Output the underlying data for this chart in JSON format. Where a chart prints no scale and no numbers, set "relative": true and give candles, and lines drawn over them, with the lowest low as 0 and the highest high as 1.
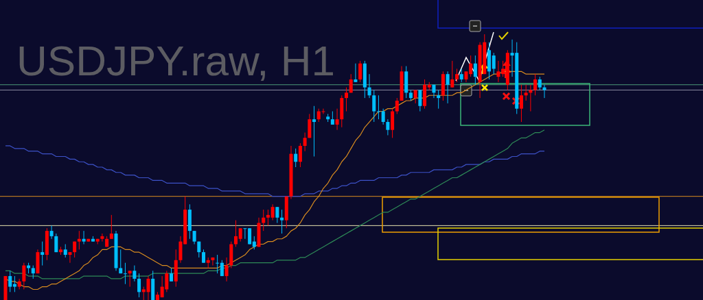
{
  "chart_data": {
    "type": "candlestick",
    "title": "USDJPY.raw, H1",
    "relative": true,
    "categories": [
      null,
      null,
      null,
      null,
      null,
      null,
      null,
      null,
      null,
      null,
      null,
      null,
      null,
      null,
      null,
      null,
      null,
      null,
      null,
      null,
      null,
      null,
      null,
      null,
      null,
      null,
      null,
      null,
      null,
      null,
      null,
      null,
      null,
      null,
      null,
      null,
      null,
      null,
      null,
      null,
      null,
      null,
      null,
      null,
      null,
      null,
      null,
      null,
      null,
      null,
      null,
      null,
      null,
      null,
      null,
      null,
      null,
      null,
      null,
      null,
      null,
      null,
      null,
      null,
      null,
      null,
      null,
      null,
      null,
      null,
      null,
      null,
      null,
      null,
      null,
      null,
      null,
      null,
      null,
      null,
      null,
      null,
      null,
      null,
      null,
      null,
      null,
      null,
      null,
      null,
      null,
      null,
      null,
      null,
      null,
      null,
      null,
      null,
      null,
      null,
      null,
      null,
      null,
      null,
      null,
      null,
      null,
      null,
      null,
      null,
      null,
      null,
      null,
      null,
      null,
      null,
      null,
      null
    ],
    "ohlc": [
      [
        0,
        0.09,
        0,
        0.09
      ],
      [
        0.09,
        0.11,
        0.03,
        0.05
      ],
      [
        0.06,
        0.09,
        0.03,
        0.05
      ],
      [
        0.05,
        0.08,
        0.04,
        0.07
      ],
      [
        0.07,
        0.14,
        0.04,
        0.13
      ],
      [
        0.13,
        0.14,
        0.1,
        0.12
      ],
      [
        0.12,
        0.13,
        0.08,
        0.1
      ],
      [
        0.1,
        0.19,
        0.1,
        0.18
      ],
      [
        0.18,
        0.22,
        0.13,
        0.17
      ],
      [
        0.17,
        0.27,
        0.15,
        0.26
      ],
      [
        0.26,
        0.28,
        0.23,
        0.24
      ],
      [
        0.24,
        0.25,
        0.18,
        0.18
      ],
      [
        0.18,
        0.2,
        0.17,
        0.19
      ],
      [
        0.19,
        0.21,
        0.16,
        0.17
      ],
      [
        0.17,
        0.18,
        0.14,
        0.18
      ],
      [
        0.18,
        0.22,
        0.16,
        0.22
      ],
      [
        0.22,
        0.26,
        0.19,
        0.23
      ],
      [
        0.23,
        0.26,
        0.21,
        0.22
      ],
      [
        0.22,
        0.23,
        0.22,
        0.23
      ],
      [
        0.23,
        0.24,
        0.22,
        0.22
      ],
      [
        0.22,
        0.23,
        0.21,
        0.23
      ],
      [
        0.23,
        0.25,
        0.22,
        0.24
      ],
      [
        0.2,
        0.24,
        0.2,
        0.23
      ],
      [
        0.23,
        0.32,
        0.23,
        0.25
      ],
      [
        0.25,
        0.26,
        0.11,
        0.12
      ],
      [
        0.12,
        0.19,
        0.1,
        0.1
      ],
      [
        0.1,
        0.14,
        0.06,
        0.1
      ],
      [
        0.1,
        0.11,
        0.05,
        0.11
      ],
      [
        0.11,
        0.13,
        0.07,
        0.08
      ],
      [
        0.08,
        0.1,
        0.01,
        0.03
      ],
      [
        0.03,
        0.05,
        0,
        0.04
      ],
      [
        0.03,
        0.09,
        0,
        0.08
      ],
      [
        0.08,
        0.11,
        0,
        0
      ],
      [
        0,
        0.03,
        0,
        0.02
      ],
      [
        0.01,
        0.09,
        0.01,
        0.05
      ],
      [
        0.04,
        0.11,
        0.03,
        0.1
      ],
      [
        0.1,
        0.12,
        0.07,
        0.07
      ],
      [
        0.07,
        0.19,
        0.05,
        0.15
      ],
      [
        0.15,
        0.24,
        0.14,
        0.22
      ],
      [
        0.21,
        0.39,
        0.21,
        0.34
      ],
      [
        0.34,
        0.36,
        0.23,
        0.26
      ],
      [
        0.26,
        0.26,
        0.21,
        0.22
      ],
      [
        0.22,
        0.22,
        0.16,
        0.18
      ],
      [
        0.18,
        0.19,
        0.14,
        0.14
      ],
      [
        0.14,
        0.16,
        0.12,
        0.15
      ],
      [
        0.15,
        0.16,
        0.13,
        0.16
      ],
      [
        0.14,
        0.17,
        0.1,
        0.14
      ],
      [
        0.14,
        0.15,
        0.09,
        0.09
      ],
      [
        0.09,
        0.16,
        0.07,
        0.13
      ],
      [
        0.13,
        0.22,
        0.12,
        0.21
      ],
      [
        0.21,
        0.3,
        0.2,
        0.24
      ],
      [
        0.23,
        0.27,
        0.22,
        0.27
      ],
      [
        0.27,
        0.27,
        0.23,
        0.27
      ],
      [
        0.27,
        0.27,
        0.21,
        0.21
      ],
      [
        0.22,
        0.24,
        0.19,
        0.2
      ],
      [
        0.2,
        0.31,
        0.2,
        0.29
      ],
      [
        0.29,
        0.34,
        0.26,
        0.31
      ],
      [
        0.31,
        0.34,
        0.28,
        0.32
      ],
      [
        0.31,
        0.36,
        0.3,
        0.35
      ],
      [
        0.35,
        0.35,
        0.29,
        0.31
      ],
      [
        0.31,
        0.34,
        0.25,
        0.3
      ],
      [
        0.3,
        0.39,
        0.27,
        0.39
      ],
      [
        0.39,
        0.58,
        0.38,
        0.55
      ],
      [
        0.55,
        0.57,
        0.5,
        0.52
      ],
      [
        0.52,
        0.59,
        0.5,
        0.58
      ],
      [
        0.58,
        0.63,
        0.56,
        0.61
      ],
      [
        0.61,
        0.7,
        0.61,
        0.68
      ],
      [
        0.68,
        0.73,
        0.54,
        0.67
      ],
      [
        0.68,
        0.72,
        0.67,
        0.71
      ],
      [
        0.71,
        0.72,
        0.7,
        0.71
      ],
      [
        0.69,
        0.7,
        0.67,
        0.68
      ],
      [
        0.68,
        0.71,
        0.66,
        0.66
      ],
      [
        0.66,
        0.72,
        0.64,
        0.68
      ],
      [
        0.68,
        0.77,
        0.65,
        0.76
      ],
      [
        0.76,
        0.8,
        0.71,
        0.78
      ],
      [
        0.78,
        0.85,
        0.78,
        0.83
      ],
      [
        0.83,
        0.89,
        0.82,
        0.82
      ],
      [
        0.83,
        0.9,
        0.82,
        0.89
      ],
      [
        0.89,
        0.9,
        0.76,
        0.8
      ],
      [
        0.8,
        0.85,
        0.76,
        0.77
      ],
      [
        0.77,
        0.79,
        0.67,
        0.71
      ],
      [
        0.71,
        0.77,
        0.68,
        0.71
      ],
      [
        0.71,
        0.72,
        0.66,
        0.67
      ],
      [
        0.67,
        0.68,
        0.62,
        0.64
      ],
      [
        0.64,
        0.72,
        0.61,
        0.71
      ],
      [
        0.71,
        0.76,
        0.7,
        0.75
      ],
      [
        0.75,
        0.88,
        0.75,
        0.86
      ],
      [
        0.86,
        0.88,
        0.76,
        0.78
      ],
      [
        0.78,
        0.79,
        0.75,
        0.76
      ],
      [
        0.76,
        0.79,
        0.74,
        0.79
      ],
      [
        0.79,
        0.79,
        0.71,
        0.73
      ],
      [
        0.73,
        0.83,
        0.72,
        0.81
      ],
      [
        0.8,
        0.82,
        0.79,
        0.81
      ],
      [
        0.81,
        0.81,
        0.76,
        0.78
      ],
      [
        0.77,
        0.79,
        0.72,
        0.76
      ],
      [
        0.77,
        0.86,
        0.75,
        0.85
      ],
      [
        0.85,
        0.86,
        0.74,
        0.81
      ],
      [
        0.8,
        0.9,
        0.8,
        0.83
      ],
      [
        0.83,
        0.87,
        0.82,
        0.85
      ],
      [
        0.85,
        0.87,
        0.82,
        0.83
      ],
      [
        0.83,
        0.86,
        0.82,
        0.86
      ],
      [
        0.85,
        0.92,
        0.84,
        0.89
      ],
      [
        0.89,
        0.92,
        0.81,
        0.84
      ],
      [
        0.82,
        0.97,
        0.76,
        0.96
      ],
      [
        0.85,
        1,
        0.85,
        0.97
      ],
      [
        0.94,
        0.97,
        0.83,
        0.86
      ],
      [
        0.92,
        0.93,
        0.85,
        0.87
      ],
      [
        0.84,
        0.9,
        0.82,
        0.86
      ],
      [
        0.85,
        0.9,
        0.84,
        0.87
      ],
      [
        0.81,
        0.94,
        0.79,
        0.93
      ],
      [
        0.93,
        0.98,
        0.84,
        0.92
      ],
      [
        0.93,
        0.97,
        0.7,
        0.72
      ],
      [
        0.72,
        0.81,
        0.67,
        0.77
      ],
      [
        0.77,
        0.81,
        0.75,
        0.78
      ],
      [
        0.78,
        0.81,
        0.71,
        0.79
      ],
      [
        0.79,
        0.85,
        0.77,
        0.83
      ],
      [
        0.83,
        0.84,
        0.79,
        0.8
      ],
      [
        0.8,
        0.81,
        0.76,
        0.79
      ]
    ],
    "colors": [
      "#ff0000",
      "#00bfff",
      "#00bfff",
      "#ff0000",
      "#ff0000",
      "#00bfff",
      "#00bfff",
      "#ff0000",
      "#00bfff",
      "#ff0000",
      "#00bfff",
      "#00bfff",
      "#ff0000",
      "#00bfff",
      "#ff0000",
      "#ff0000",
      "#ff0000",
      "#00bfff",
      "#ff0000",
      "#00bfff",
      "#ff0000",
      "#ff0000",
      "#ff0000",
      "#ff0000",
      "#00bfff",
      "#00bfff",
      "#00bfff",
      "#ff0000",
      "#00bfff",
      "#00bfff",
      "#ff0000",
      "#ff0000",
      "#00bfff",
      "#ff0000",
      "#ff0000",
      "#ff0000",
      "#00bfff",
      "#ff0000",
      "#ff0000",
      "#ff0000",
      "#00bfff",
      "#00bfff",
      "#00bfff",
      "#00bfff",
      "#ff0000",
      "#ff0000",
      "#00bfff",
      "#00bfff",
      "#ff0000",
      "#ff0000",
      "#ff0000",
      "#ff0000",
      "#00bfff",
      "#00bfff",
      "#00bfff",
      "#ff0000",
      "#ff0000",
      "#ff0000",
      "#ff0000",
      "#00bfff",
      "#00bfff",
      "#ff0000",
      "#ff0000",
      "#00bfff",
      "#ff0000",
      "#ff0000",
      "#ff0000",
      "#00bfff",
      "#ff0000",
      "#ff0000",
      "#00bfff",
      "#00bfff",
      "#ff0000",
      "#ff0000",
      "#ff0000",
      "#ff0000",
      "#00bfff",
      "#ff0000",
      "#00bfff",
      "#00bfff",
      "#00bfff",
      "#00bfff",
      "#00bfff",
      "#00bfff",
      "#ff0000",
      "#ff0000",
      "#ff0000",
      "#00bfff",
      "#00bfff",
      "#ff0000",
      "#00bfff",
      "#ff0000",
      "#ff0000",
      "#00bfff",
      "#00bfff",
      "#ff0000",
      "#00bfff",
      "#ff0000",
      "#ff0000",
      "#00bfff",
      "#ff0000",
      "#ff0000",
      "#00bfff",
      "#ff0000",
      "#ff0000",
      "#00bfff",
      "#00bfff",
      "#ff0000",
      "#ff0000",
      "#ff0000",
      "#00bfff",
      "#00bfff",
      "#ff0000",
      "#ff0000",
      "#ff0000",
      "#ff0000",
      "#00bfff",
      "#00bfff"
    ],
    "series": [
      {
        "type": "line",
        "color": "#3d52c8",
        "values": [
          0.58,
          0.58,
          0.57,
          0.57,
          0.57,
          0.56,
          0.56,
          0.56,
          0.55,
          0.55,
          0.55,
          0.54,
          0.54,
          0.54,
          0.53,
          0.53,
          0.52,
          0.52,
          0.51,
          0.51,
          0.5,
          0.5,
          0.49,
          0.49,
          0.48,
          0.48,
          0.47,
          0.47,
          0.47,
          0.46,
          0.46,
          0.46,
          0.45,
          0.45,
          0.45,
          0.44,
          0.44,
          0.44,
          0.44,
          0.44,
          0.43,
          0.43,
          0.43,
          0.43,
          0.42,
          0.42,
          0.42,
          0.41,
          0.41,
          0.41,
          0.41,
          0.41,
          0.4,
          0.4,
          0.4,
          0.4,
          0.4,
          0.4,
          0.39,
          0.39,
          0.39,
          0.39,
          0.39,
          0.39,
          0.39,
          0.4,
          0.4,
          0.4,
          0.41,
          0.41,
          0.41,
          0.42,
          0.42,
          0.43,
          0.43,
          0.44,
          0.44,
          0.45,
          0.45,
          0.45,
          0.45,
          0.46,
          0.46,
          0.46,
          0.46,
          0.46,
          0.47,
          0.47,
          0.48,
          0.48,
          0.48,
          0.48,
          0.48,
          0.49,
          0.49,
          0.49,
          0.49,
          0.49,
          0.5,
          0.5,
          0.51,
          0.51,
          0.51,
          0.51,
          0.52,
          0.52,
          0.53,
          0.53,
          0.53,
          0.53,
          0.54,
          0.54,
          0.55,
          0.55,
          0.55,
          0.55,
          0.56,
          0.56
        ]
      },
      {
        "type": "line",
        "color": "#2e8b57",
        "values": [
          0.11,
          0.11,
          0.1,
          0.1,
          0.1,
          0.09,
          0.09,
          0.09,
          0.08,
          0.08,
          0.08,
          0.08,
          0.08,
          0.08,
          0.08,
          0.08,
          0.08,
          0.09,
          0.09,
          0.09,
          0.09,
          0.09,
          0.09,
          0.08,
          0.08,
          0.08,
          0.09,
          0.09,
          0.09,
          0.09,
          0.09,
          0.09,
          0.1,
          0.1,
          0.1,
          0.1,
          0.1,
          0.1,
          0.1,
          0.1,
          0.1,
          0.1,
          0.1,
          0.1,
          0.11,
          0.11,
          0.11,
          0.12,
          0.12,
          0.13,
          0.13,
          0.14,
          0.14,
          0.14,
          0.14,
          0.14,
          0.14,
          0.14,
          0.14,
          0.15,
          0.15,
          0.15,
          0.15,
          0.15,
          0.16,
          0.16,
          0.17,
          0.18,
          0.19,
          0.2,
          0.21,
          0.22,
          0.23,
          0.24,
          0.25,
          0.26,
          0.27,
          0.28,
          0.29,
          0.3,
          0.31,
          0.32,
          0.33,
          0.33,
          0.34,
          0.35,
          0.36,
          0.37,
          0.38,
          0.38,
          0.39,
          0.4,
          0.41,
          0.42,
          0.43,
          0.44,
          0.45,
          0.46,
          0.46,
          0.47,
          0.48,
          0.49,
          0.5,
          0.51,
          0.52,
          0.53,
          0.54,
          0.55,
          0.56,
          0.57,
          0.59,
          0.6,
          0.61,
          0.61,
          0.62,
          0.63,
          0.63,
          0.64
        ]
      },
      {
        "type": "line",
        "color": "#d98c1f",
        "values": [
          0.08,
          0.07,
          0.07,
          0.06,
          0.05,
          0.05,
          0.04,
          0.04,
          0.05,
          0.05,
          0.06,
          0.06,
          0.07,
          0.08,
          0.09,
          0.1,
          0.11,
          0.13,
          0.14,
          0.16,
          0.17,
          0.19,
          0.19,
          0.2,
          0.2,
          0.2,
          0.19,
          0.19,
          0.18,
          0.18,
          0.17,
          0.16,
          0.15,
          0.14,
          0.13,
          0.13,
          0.12,
          0.12,
          0.12,
          0.12,
          0.12,
          0.12,
          0.12,
          0.12,
          0.12,
          0.12,
          0.12,
          0.13,
          0.13,
          0.14,
          0.15,
          0.16,
          0.17,
          0.19,
          0.2,
          0.21,
          0.21,
          0.22,
          0.22,
          0.23,
          0.23,
          0.24,
          0.26,
          0.27,
          0.29,
          0.32,
          0.34,
          0.37,
          0.39,
          0.42,
          0.44,
          0.47,
          0.49,
          0.52,
          0.54,
          0.57,
          0.6,
          0.62,
          0.65,
          0.67,
          0.69,
          0.71,
          0.71,
          0.72,
          0.72,
          0.73,
          0.74,
          0.75,
          0.75,
          0.76,
          0.76,
          0.76,
          0.77,
          0.77,
          0.77,
          0.77,
          0.77,
          0.77,
          0.78,
          0.78,
          0.79,
          0.8,
          0.81,
          0.82,
          0.83,
          0.84,
          0.85,
          0.85,
          0.86,
          0.86,
          0.86,
          0.86,
          0.86,
          0.85,
          0.85,
          0.85,
          0.85,
          0.85
        ]
      }
    ],
    "ref_lines": [
      {
        "axis": "y",
        "value": 0.39,
        "color": "#d98c1f"
      },
      {
        "axis": "y",
        "value": 0.28,
        "color": "#e8e4b0"
      },
      {
        "axis": "y",
        "value": 0.81,
        "color": "#4c9a78"
      },
      {
        "axis": "y",
        "value": 0.79,
        "color": "#8a8aa0"
      }
    ]
  }
}
